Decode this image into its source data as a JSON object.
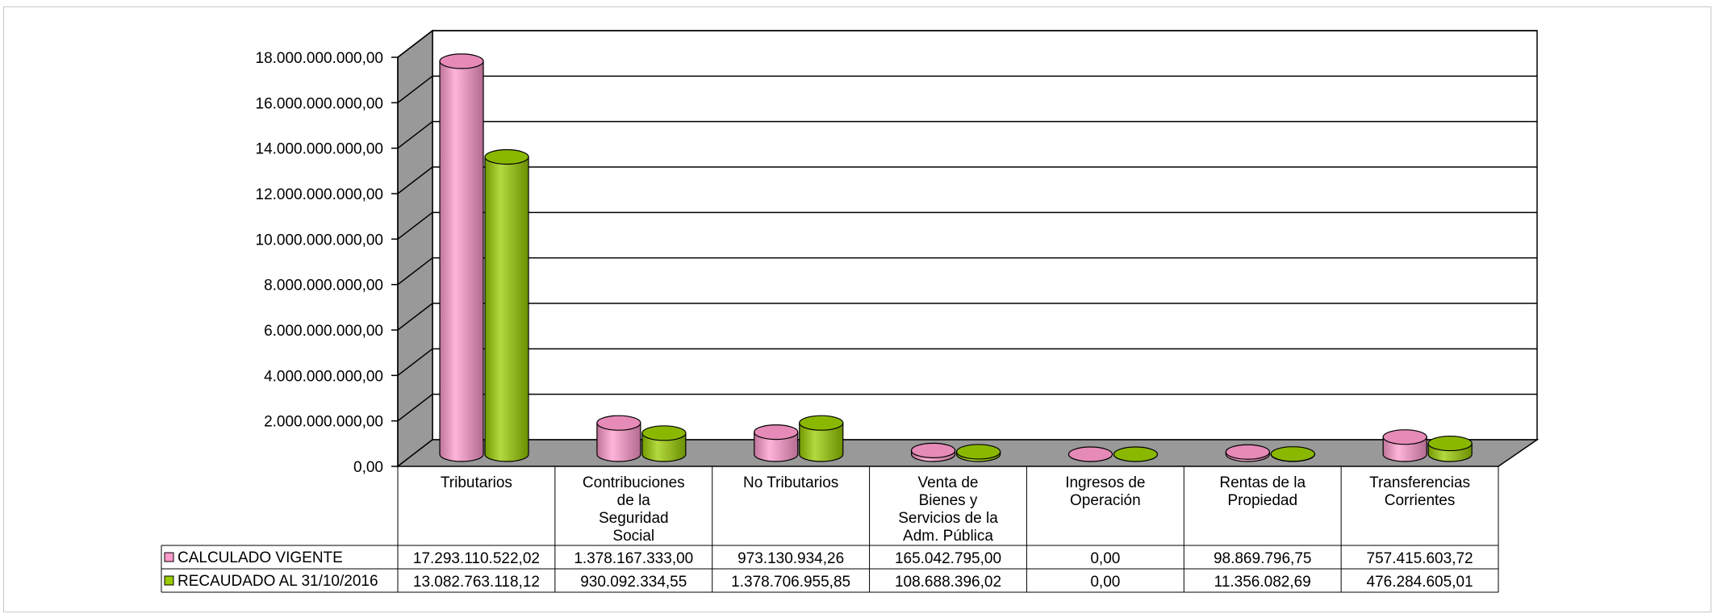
{
  "chart_data": {
    "type": "bar",
    "subtype": "3d-cylinder",
    "title": "",
    "xlabel": "",
    "ylabel": "",
    "ylim": [
      0,
      18000000000
    ],
    "yticks": [
      "0,00",
      "2.000.000.000,00",
      "4.000.000.000,00",
      "6.000.000.000,00",
      "8.000.000.000,00",
      "10.000.000.000,00",
      "12.000.000.000,00",
      "14.000.000.000,00",
      "16.000.000.000,00",
      "18.000.000.000,00"
    ],
    "grid": true,
    "legend": "data-table-left",
    "categories": [
      [
        "Tributarios"
      ],
      [
        "Contribuciones",
        "de la",
        "Seguridad",
        "Social"
      ],
      [
        "No Tributarios"
      ],
      [
        "Venta de",
        "Bienes y",
        "Servicios de la",
        "Adm. Pública"
      ],
      [
        "Ingresos de",
        "Operación"
      ],
      [
        "Rentas de la",
        "Propiedad"
      ],
      [
        "Transferencias",
        "Corrientes"
      ]
    ],
    "series": [
      {
        "name": "CALCULADO VIGENTE",
        "color": "#ff99cc",
        "values": [
          17293110522.02,
          1378167333.0,
          973130934.26,
          165042795.0,
          0,
          98869796.75,
          757415603.72
        ],
        "labels": [
          "17.293.110.522,02",
          "1.378.167.333,00",
          "973.130.934,26",
          "165.042.795,00",
          "0,00",
          "98.869.796,75",
          "757.415.603,72"
        ]
      },
      {
        "name": "RECAUDADO AL  31/10/2016",
        "color": "#99cc00",
        "values": [
          13082763118.12,
          930092334.55,
          1378706955.85,
          108688396.02,
          0,
          11356082.69,
          476284605.01
        ],
        "labels": [
          "13.082.763.118,12",
          "930.092.334,55",
          "1.378.706.955,85",
          "108.688.396,02",
          "0,00",
          "11.356.082,69",
          "476.284.605,01"
        ]
      }
    ]
  }
}
